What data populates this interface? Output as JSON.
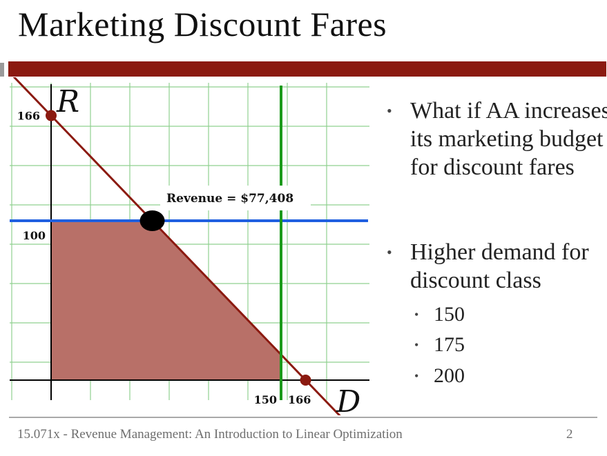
{
  "slide": {
    "title": "Marketing Discount Fares",
    "footer": "15.071x - Revenue Management: An Introduction to Linear Optimization",
    "page_number": "2"
  },
  "bullets": {
    "main": [
      {
        "text": "What if AA increases its marketing budget for discount fares"
      },
      {
        "text": "Higher demand for discount class"
      }
    ],
    "sub": [
      "150",
      "175",
      "200"
    ]
  },
  "colors": {
    "title_bar": "#8b1a10",
    "feasible_region": "#b87068",
    "constraint_line": "#8b1a10",
    "demand_regular": "#1f5fe0",
    "demand_discount": "#1a9a1a",
    "grid": "#8fd08f"
  },
  "chart_data": {
    "type": "line",
    "xlabel": "D",
    "ylabel": "R",
    "xlim": [
      0,
      180
    ],
    "ylim": [
      0,
      180
    ],
    "x_tick_labels": [
      "150",
      "166"
    ],
    "y_tick_labels": [
      "166",
      "100"
    ],
    "capacity_line": {
      "points": [
        [
          0,
          166
        ],
        [
          166,
          0
        ]
      ]
    },
    "regular_demand": {
      "y": 100
    },
    "discount_demand": {
      "x": 150
    },
    "feasible_region": [
      [
        0,
        0
      ],
      [
        0,
        100
      ],
      [
        66,
        100
      ],
      [
        150,
        16
      ],
      [
        150,
        0
      ]
    ],
    "optimal_point": {
      "x": 66,
      "y": 100
    },
    "intercept_points": [
      [
        0,
        166
      ],
      [
        166,
        0
      ]
    ],
    "annotation": "Revenue = $77,408"
  }
}
